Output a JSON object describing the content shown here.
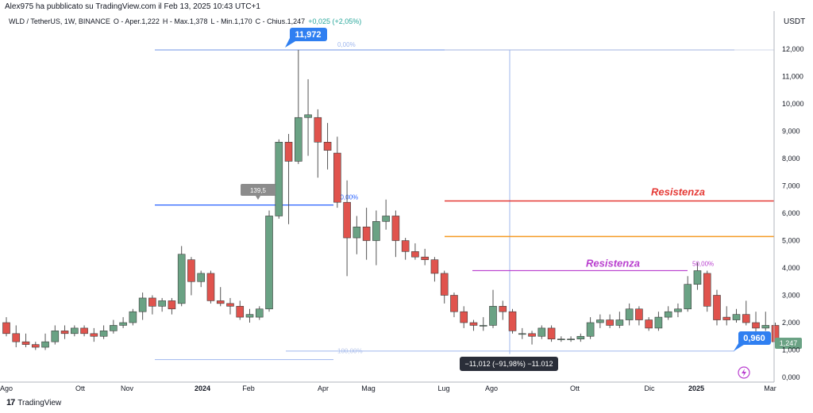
{
  "header": {
    "publisher": "Alex975 ha pubblicato su TradingView.com il Feb 13, 2025 10:43 UTC+1",
    "symbol": "WLD / TetherUS, 1W, BINANCE",
    "open": "O - Aper.1,222",
    "high": "H - Max.1,378",
    "low": "L - Min.1,170",
    "close": "C - Chius.1,247",
    "change": "+0,025 (+2,05%)",
    "currency": "USDT",
    "footer": "TradingView"
  },
  "colors": {
    "up": "#6aa284",
    "down": "#e0534d",
    "resistance_red": "#e53935",
    "resistance_orange": "#f59a23",
    "resistance_purple": "#b93fcf",
    "fib_blue": "#2962ff",
    "label_blue": "#2f7ff1"
  },
  "chart_data": {
    "type": "candlestick",
    "y_ticks": [
      "0,000",
      "1,000",
      "2,000",
      "3,000",
      "4,000",
      "5,000",
      "6,000",
      "7,000",
      "8,000",
      "9,000",
      "10,000",
      "11,000",
      "12,000"
    ],
    "x_ticks": [
      "Ago",
      "Ott",
      "Nov",
      "2024",
      "Feb",
      "Apr",
      "Mag",
      "Lug",
      "Ago",
      "Ott",
      "Dic",
      "2025",
      "Mar"
    ],
    "ylim": [
      0,
      12.6
    ],
    "candles": [
      [
        2.0,
        1.6,
        2.2,
        1.5
      ],
      [
        1.6,
        1.3,
        1.9,
        1.1
      ],
      [
        1.3,
        1.2,
        1.6,
        1.1
      ],
      [
        1.2,
        1.1,
        1.3,
        1.0
      ],
      [
        1.1,
        1.3,
        1.6,
        1.0
      ],
      [
        1.3,
        1.7,
        1.9,
        1.2
      ],
      [
        1.7,
        1.6,
        1.9,
        1.4
      ],
      [
        1.6,
        1.8,
        1.9,
        1.5
      ],
      [
        1.8,
        1.6,
        1.9,
        1.5
      ],
      [
        1.6,
        1.5,
        1.8,
        1.3
      ],
      [
        1.5,
        1.7,
        1.9,
        1.4
      ],
      [
        1.7,
        1.9,
        2.1,
        1.6
      ],
      [
        1.9,
        2.0,
        2.2,
        1.8
      ],
      [
        2.0,
        2.4,
        2.5,
        1.9
      ],
      [
        2.4,
        2.9,
        3.1,
        2.1
      ],
      [
        2.9,
        2.6,
        3.0,
        2.3
      ],
      [
        2.6,
        2.8,
        2.9,
        2.4
      ],
      [
        2.8,
        2.5,
        2.9,
        2.3
      ],
      [
        2.7,
        4.5,
        4.8,
        2.6
      ],
      [
        4.3,
        3.5,
        4.4,
        3.0
      ],
      [
        3.5,
        3.8,
        3.9,
        3.3
      ],
      [
        3.8,
        2.8,
        3.9,
        2.7
      ],
      [
        2.8,
        2.7,
        3.3,
        2.6
      ],
      [
        2.7,
        2.6,
        2.9,
        2.3
      ],
      [
        2.6,
        2.2,
        2.8,
        2.1
      ],
      [
        2.2,
        2.3,
        2.5,
        2.0
      ],
      [
        2.2,
        2.5,
        2.6,
        2.1
      ],
      [
        2.5,
        5.9,
        6.1,
        2.4
      ],
      [
        5.9,
        8.6,
        8.7,
        5.8
      ],
      [
        8.6,
        7.9,
        8.9,
        5.6
      ],
      [
        7.9,
        9.5,
        11.972,
        7.8
      ],
      [
        9.5,
        9.6,
        10.9,
        8.1
      ],
      [
        9.5,
        8.6,
        9.8,
        7.3
      ],
      [
        8.6,
        8.3,
        9.3,
        7.6
      ],
      [
        8.2,
        6.4,
        8.8,
        6.2
      ],
      [
        6.4,
        5.1,
        7.2,
        3.7
      ],
      [
        5.1,
        5.5,
        5.9,
        4.5
      ],
      [
        5.5,
        5.0,
        6.2,
        4.3
      ],
      [
        5.0,
        5.7,
        6.1,
        4.1
      ],
      [
        5.7,
        5.9,
        6.5,
        5.4
      ],
      [
        5.9,
        5.0,
        6.1,
        4.4
      ],
      [
        5.0,
        4.6,
        5.1,
        4.3
      ],
      [
        4.6,
        4.4,
        4.9,
        4.3
      ],
      [
        4.4,
        4.3,
        4.7,
        4.1
      ],
      [
        4.3,
        3.8,
        4.4,
        3.5
      ],
      [
        3.8,
        3.0,
        3.9,
        2.7
      ],
      [
        3.0,
        2.4,
        3.1,
        2.2
      ],
      [
        2.4,
        2.0,
        2.6,
        1.8
      ],
      [
        2.0,
        1.9,
        2.1,
        1.7
      ],
      [
        1.9,
        1.9,
        2.2,
        1.7
      ],
      [
        1.9,
        2.6,
        3.2,
        1.8
      ],
      [
        2.6,
        2.4,
        2.8,
        2.1
      ],
      [
        2.4,
        1.7,
        2.5,
        1.6
      ],
      [
        1.6,
        1.6,
        1.8,
        1.4
      ],
      [
        1.6,
        1.5,
        1.7,
        1.2
      ],
      [
        1.5,
        1.8,
        1.9,
        1.4
      ],
      [
        1.8,
        1.4,
        1.9,
        1.3
      ],
      [
        1.4,
        1.4,
        1.5,
        1.3
      ],
      [
        1.4,
        1.4,
        1.5,
        1.3
      ],
      [
        1.4,
        1.5,
        1.6,
        1.3
      ],
      [
        1.5,
        2.0,
        2.2,
        1.4
      ],
      [
        2.0,
        2.1,
        2.3,
        1.8
      ],
      [
        2.1,
        1.9,
        2.3,
        1.8
      ],
      [
        1.9,
        2.1,
        2.4,
        1.8
      ],
      [
        2.1,
        2.5,
        2.7,
        1.9
      ],
      [
        2.5,
        2.1,
        2.6,
        1.9
      ],
      [
        2.1,
        1.8,
        2.2,
        1.7
      ],
      [
        1.8,
        2.2,
        2.4,
        1.7
      ],
      [
        2.2,
        2.4,
        2.6,
        2.1
      ],
      [
        2.4,
        2.5,
        2.7,
        2.2
      ],
      [
        2.5,
        3.4,
        3.7,
        2.4
      ],
      [
        3.4,
        3.9,
        4.2,
        3.2
      ],
      [
        3.8,
        2.6,
        3.9,
        2.4
      ],
      [
        3.0,
        2.1,
        3.2,
        1.9
      ],
      [
        2.2,
        2.1,
        2.6,
        1.9
      ],
      [
        2.1,
        2.3,
        2.5,
        2.0
      ],
      [
        2.3,
        2.0,
        2.8,
        1.9
      ],
      [
        2.0,
        1.8,
        2.4,
        1.6
      ],
      [
        1.8,
        1.9,
        2.4,
        1.7
      ],
      [
        1.9,
        1.3,
        2.0,
        1.1
      ],
      [
        1.2,
        1.25,
        1.38,
        1.17
      ]
    ],
    "lines": [
      {
        "label": "Resistenza",
        "value": 6.45,
        "color": "#e53935"
      },
      {
        "label": "",
        "value": 5.15,
        "color": "#f59a23"
      },
      {
        "label": "Resistenza",
        "value": 3.9,
        "color": "#b93fcf",
        "pct": "50,00%"
      }
    ],
    "fib_left": {
      "top_pct": "0,00%",
      "mid_pct": "50,00%",
      "bottom_pct": "100,00%",
      "mid_value": 6.3
    },
    "callouts": {
      "high": "11,972",
      "low": "0,960",
      "last": "1,247",
      "measure": "−11,012 (−91,98%) −11.012",
      "left_box": "139,5"
    }
  }
}
